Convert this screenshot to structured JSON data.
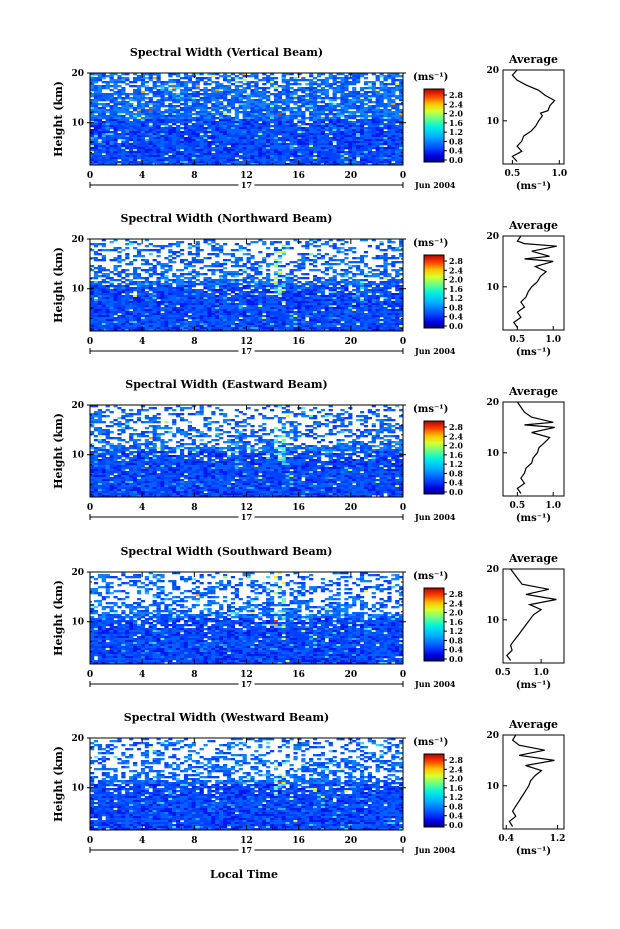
{
  "figure": {
    "xlabel": "Local Time",
    "date_label": "Jun 2004",
    "day_label": "17",
    "unit_label": "(ms⁻¹)",
    "avg_title": "Average",
    "avg_xlabel": "(ms⁻¹)"
  },
  "colorscale": {
    "ticks": [
      "2.8",
      "2.4",
      "2.0",
      "1.6",
      "1.2",
      "0.8",
      "0.4",
      "0.0"
    ],
    "colors": [
      "#000080",
      "#0000d8",
      "#0030ff",
      "#0070ff",
      "#00b0ff",
      "#00e8f0",
      "#40ffb8",
      "#90ff70",
      "#d8ff30",
      "#ffe000",
      "#ffa000",
      "#ff5000",
      "#e80000",
      "#a00000"
    ]
  },
  "chart_data": [
    {
      "type": "heatmap",
      "title": "Spectral Width (Vertical Beam)",
      "ylabel": "Height (km)",
      "x_ticks": [
        "0",
        "4",
        "8",
        "12",
        "16",
        "20",
        "0"
      ],
      "xlim": [
        0,
        24
      ],
      "y_ticks": [
        "20",
        "10"
      ],
      "ylim": [
        1.5,
        20
      ],
      "avg_profile": {
        "x_ticks": [
          "0.5",
          "1.0"
        ],
        "xlim": [
          0.4,
          1.05
        ],
        "points": [
          [
            0.55,
            2
          ],
          [
            0.5,
            3
          ],
          [
            0.6,
            4
          ],
          [
            0.55,
            5
          ],
          [
            0.6,
            6
          ],
          [
            0.62,
            7
          ],
          [
            0.7,
            8
          ],
          [
            0.75,
            9
          ],
          [
            0.78,
            10
          ],
          [
            0.82,
            11
          ],
          [
            0.8,
            11.5
          ],
          [
            0.88,
            12
          ],
          [
            0.9,
            13
          ],
          [
            0.95,
            14
          ],
          [
            0.85,
            15
          ],
          [
            0.78,
            16
          ],
          [
            0.65,
            17
          ],
          [
            0.55,
            18
          ],
          [
            0.5,
            19
          ],
          [
            0.55,
            20
          ]
        ]
      }
    },
    {
      "type": "heatmap",
      "title": "Spectral Width (Northward Beam)",
      "ylabel": "Height (km)",
      "x_ticks": [
        "0",
        "4",
        "8",
        "12",
        "16",
        "20",
        "0"
      ],
      "xlim": [
        0,
        24
      ],
      "y_ticks": [
        "20",
        "10"
      ],
      "ylim": [
        1.5,
        20
      ],
      "avg_profile": {
        "x_ticks": [
          "0.5",
          "1.0"
        ],
        "xlim": [
          0.3,
          1.15
        ],
        "points": [
          [
            0.5,
            2
          ],
          [
            0.45,
            3
          ],
          [
            0.55,
            4
          ],
          [
            0.5,
            5
          ],
          [
            0.6,
            6
          ],
          [
            0.55,
            7
          ],
          [
            0.62,
            8
          ],
          [
            0.65,
            9
          ],
          [
            0.7,
            10
          ],
          [
            0.78,
            11
          ],
          [
            0.82,
            12
          ],
          [
            0.9,
            13
          ],
          [
            0.75,
            14
          ],
          [
            1.0,
            15
          ],
          [
            0.6,
            15.5
          ],
          [
            0.95,
            16
          ],
          [
            0.7,
            17
          ],
          [
            1.05,
            18
          ],
          [
            0.6,
            18.5
          ],
          [
            0.5,
            19
          ],
          [
            0.55,
            20
          ]
        ]
      }
    },
    {
      "type": "heatmap",
      "title": "Spectral Width (Eastward Beam)",
      "ylabel": "Height (km)",
      "x_ticks": [
        "0",
        "4",
        "8",
        "12",
        "16",
        "20",
        "0"
      ],
      "xlim": [
        0,
        24
      ],
      "y_ticks": [
        "20",
        "10"
      ],
      "ylim": [
        1.5,
        20
      ],
      "avg_profile": {
        "x_ticks": [
          "0.5",
          "1.0"
        ],
        "xlim": [
          0.3,
          1.15
        ],
        "points": [
          [
            0.55,
            2
          ],
          [
            0.5,
            3
          ],
          [
            0.6,
            4
          ],
          [
            0.55,
            5
          ],
          [
            0.6,
            6
          ],
          [
            0.62,
            7
          ],
          [
            0.7,
            8
          ],
          [
            0.72,
            9
          ],
          [
            0.78,
            10
          ],
          [
            0.8,
            11
          ],
          [
            0.88,
            12
          ],
          [
            0.95,
            13
          ],
          [
            0.7,
            14
          ],
          [
            1.02,
            15
          ],
          [
            0.6,
            15.5
          ],
          [
            1.0,
            16
          ],
          [
            0.7,
            17
          ],
          [
            0.6,
            18
          ],
          [
            0.55,
            19
          ],
          [
            0.5,
            20
          ]
        ]
      }
    },
    {
      "type": "heatmap",
      "title": "Spectral Width (Southward Beam)",
      "ylabel": "Height (km)",
      "x_ticks": [
        "0.5",
        "1.0"
      ],
      "x_ticks_main": [
        "0",
        "4",
        "8",
        "12",
        "16",
        "20",
        "0"
      ],
      "xlim": [
        0,
        24
      ],
      "y_ticks": [
        "20",
        "10"
      ],
      "ylim": [
        1.5,
        20
      ],
      "avg_profile": {
        "x_ticks": [
          "0.5",
          "1.0"
        ],
        "xlim": [
          0.5,
          1.3
        ],
        "points": [
          [
            0.6,
            2
          ],
          [
            0.55,
            3
          ],
          [
            0.62,
            4
          ],
          [
            0.6,
            5
          ],
          [
            0.65,
            6
          ],
          [
            0.7,
            7
          ],
          [
            0.75,
            8
          ],
          [
            0.8,
            9
          ],
          [
            0.85,
            10
          ],
          [
            0.9,
            11
          ],
          [
            1.0,
            12
          ],
          [
            0.85,
            13
          ],
          [
            1.2,
            14
          ],
          [
            0.8,
            15
          ],
          [
            1.1,
            16
          ],
          [
            0.75,
            17
          ],
          [
            0.7,
            18
          ],
          [
            0.65,
            19
          ],
          [
            0.6,
            20
          ]
        ]
      }
    },
    {
      "type": "heatmap",
      "title": "Spectral Width (Westward Beam)",
      "ylabel": "Height (km)",
      "x_ticks": [
        "0",
        "4",
        "8",
        "12",
        "16",
        "20",
        "0"
      ],
      "xlim": [
        0,
        24
      ],
      "y_ticks": [
        "20",
        "10"
      ],
      "ylim": [
        1.5,
        20
      ],
      "avg_profile": {
        "x_ticks": [
          "0.4",
          "1.2"
        ],
        "xlim": [
          0.35,
          1.3
        ],
        "points": [
          [
            0.5,
            2
          ],
          [
            0.45,
            3
          ],
          [
            0.55,
            4
          ],
          [
            0.5,
            5
          ],
          [
            0.55,
            6
          ],
          [
            0.6,
            7
          ],
          [
            0.65,
            8
          ],
          [
            0.7,
            9
          ],
          [
            0.75,
            10
          ],
          [
            0.78,
            11
          ],
          [
            0.85,
            12
          ],
          [
            0.95,
            13
          ],
          [
            0.7,
            14
          ],
          [
            1.15,
            15
          ],
          [
            0.6,
            16
          ],
          [
            1.0,
            17
          ],
          [
            0.6,
            18
          ],
          [
            0.5,
            19
          ],
          [
            0.55,
            20
          ]
        ]
      }
    }
  ]
}
